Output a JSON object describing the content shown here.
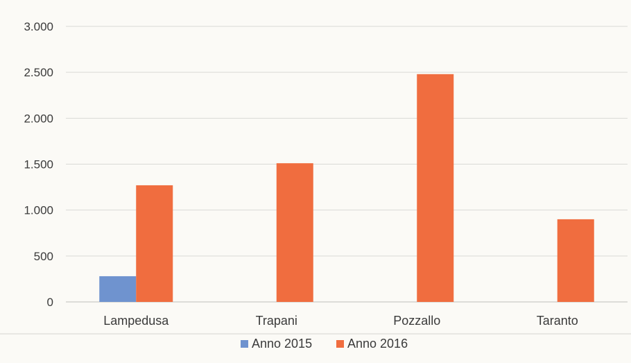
{
  "chart_data": {
    "type": "bar",
    "title": "",
    "xlabel": "",
    "ylabel": "",
    "categories": [
      "Lampedusa",
      "Trapani",
      "Pozzallo",
      "Taranto"
    ],
    "series": [
      {
        "name": "Anno 2015",
        "color": "#6f93cf",
        "values": [
          280,
          0,
          0,
          0
        ]
      },
      {
        "name": "Anno 2016",
        "color": "#f06d3f",
        "values": [
          1270,
          1510,
          2480,
          900
        ]
      }
    ],
    "ylim": [
      0,
      3000
    ],
    "yticks": [
      0,
      500,
      1000,
      1500,
      2000,
      2500,
      3000
    ],
    "ytick_labels": [
      "0",
      "500",
      "1.000",
      "1.500",
      "2.000",
      "2.500",
      "3.000"
    ],
    "grid": true,
    "legend_position": "bottom"
  }
}
